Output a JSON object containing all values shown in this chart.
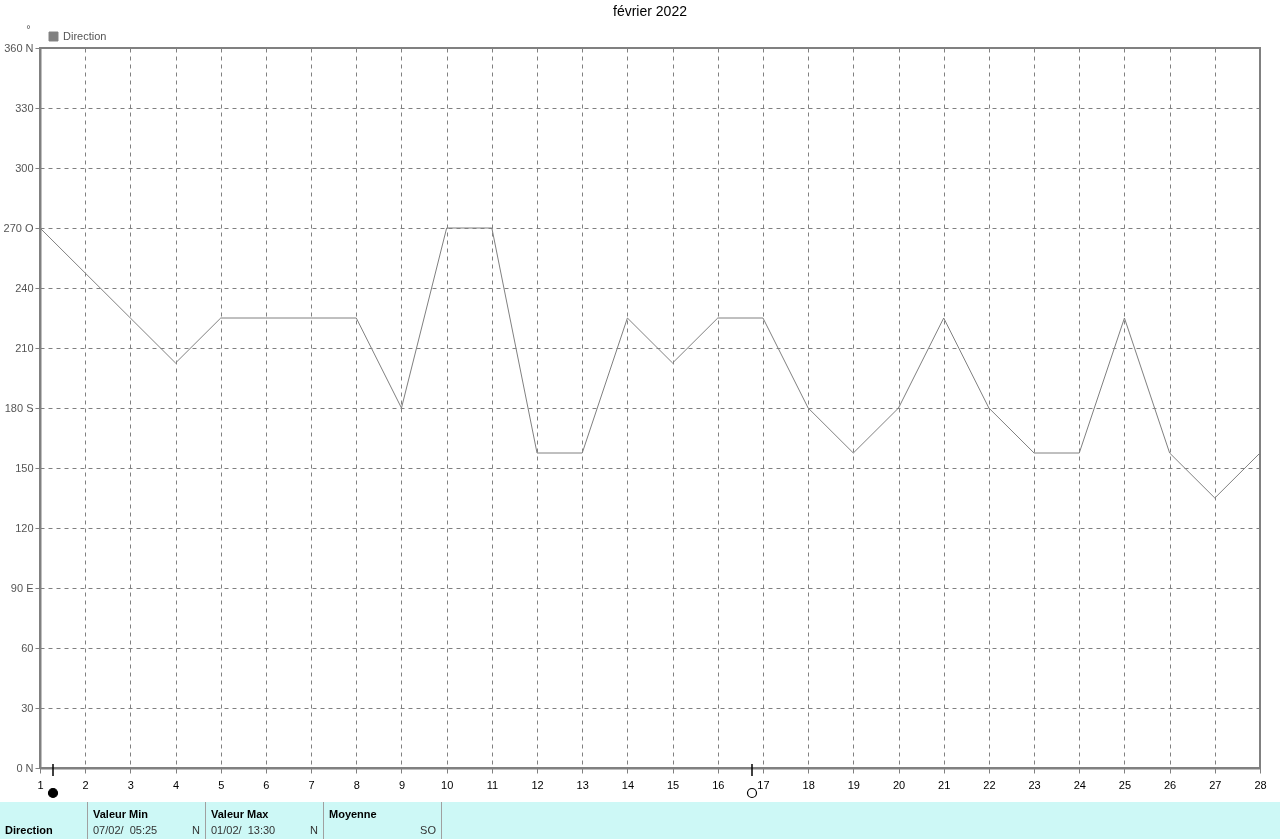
{
  "chart_data": {
    "type": "line",
    "title": "février 2022",
    "ylabel": "°",
    "x": [
      1,
      2,
      3,
      4,
      5,
      6,
      7,
      8,
      9,
      10,
      11,
      12,
      13,
      14,
      15,
      16,
      17,
      18,
      19,
      20,
      21,
      22,
      23,
      24,
      25,
      26,
      27,
      28
    ],
    "series": [
      {
        "name": "Direction",
        "color": "#808080",
        "values": [
          270,
          247.5,
          225,
          202.5,
          225,
          225,
          225,
          225,
          180,
          270,
          270,
          157.5,
          157.5,
          225,
          202.5,
          225,
          225,
          180,
          157.5,
          180,
          225,
          180,
          157.5,
          157.5,
          225,
          157.5,
          135,
          157.5
        ]
      }
    ],
    "xlim": [
      1,
      28
    ],
    "xticks": [
      1,
      2,
      3,
      4,
      5,
      6,
      7,
      8,
      9,
      10,
      11,
      12,
      13,
      14,
      15,
      16,
      17,
      18,
      19,
      20,
      21,
      22,
      23,
      24,
      25,
      26,
      27,
      28
    ],
    "ylim": [
      0,
      360
    ],
    "yticks": [
      {
        "value": 0,
        "label": "0 N"
      },
      30,
      60,
      {
        "value": 90,
        "label": "90  E"
      },
      120,
      150,
      {
        "value": 180,
        "label": "180 S"
      },
      210,
      240,
      {
        "value": 270,
        "label": "270 O"
      },
      300,
      330,
      {
        "value": 360,
        "label": "360 N"
      }
    ],
    "grid": true,
    "legend": "top left",
    "marker": "none",
    "line_style": "solid",
    "annotations": [
      "Direction",
      "Valeur Min",
      "07/02/  05:25",
      "N",
      "Valeur Max",
      "01/02/  13:30",
      "N",
      "Moyenne",
      "SO"
    ]
  }
}
